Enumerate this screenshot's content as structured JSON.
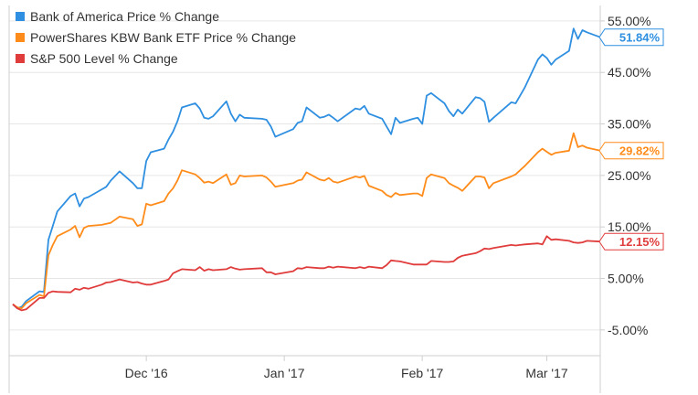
{
  "chart_data": {
    "type": "line",
    "title": "",
    "xlabel": "",
    "ylabel": "",
    "ylim": [
      -10,
      58
    ],
    "y_ticks": [
      -5,
      5,
      15,
      25,
      35,
      45,
      55
    ],
    "y_tick_labels": [
      "-5.00%",
      "5.00%",
      "15.00%",
      "25.00%",
      "35.00%",
      "45.00%",
      "55.00%"
    ],
    "x_ticks": [
      {
        "date": "2016-12-01",
        "label": "Dec '16"
      },
      {
        "date": "2017-01-01",
        "label": "Jan '17"
      },
      {
        "date": "2017-02-01",
        "label": "Feb '17"
      },
      {
        "date": "2017-03-01",
        "label": "Mar '17"
      }
    ],
    "x_range": [
      "2016-11-01",
      "2017-03-07"
    ],
    "grid": "horizontal",
    "legend_position": "top-left",
    "series": [
      {
        "name": "Bank of America Price % Change",
        "color": "#2f8fe0",
        "end_label": "51.84%",
        "end_value": 51.84,
        "points": [
          [
            "2016-11-01",
            0.0
          ],
          [
            "2016-11-02",
            -0.8
          ],
          [
            "2016-11-03",
            -0.5
          ],
          [
            "2016-11-04",
            0.6
          ],
          [
            "2016-11-07",
            2.5
          ],
          [
            "2016-11-08",
            2.4
          ],
          [
            "2016-11-09",
            12.5
          ],
          [
            "2016-11-10",
            15.2
          ],
          [
            "2016-11-11",
            18.0
          ],
          [
            "2016-11-14",
            21.0
          ],
          [
            "2016-11-15",
            21.5
          ],
          [
            "2016-11-16",
            19.0
          ],
          [
            "2016-11-17",
            20.5
          ],
          [
            "2016-11-18",
            20.8
          ],
          [
            "2016-11-21",
            22.3
          ],
          [
            "2016-11-22",
            22.8
          ],
          [
            "2016-11-23",
            24.0
          ],
          [
            "2016-11-25",
            25.8
          ],
          [
            "2016-11-28",
            23.5
          ],
          [
            "2016-11-29",
            22.5
          ],
          [
            "2016-11-30",
            22.5
          ],
          [
            "2016-12-01",
            27.8
          ],
          [
            "2016-12-02",
            29.5
          ],
          [
            "2016-12-05",
            30.2
          ],
          [
            "2016-12-06",
            32.0
          ],
          [
            "2016-12-07",
            33.5
          ],
          [
            "2016-12-08",
            35.5
          ],
          [
            "2016-12-09",
            38.2
          ],
          [
            "2016-12-12",
            39.0
          ],
          [
            "2016-12-13",
            38.0
          ],
          [
            "2016-12-14",
            36.2
          ],
          [
            "2016-12-15",
            36.0
          ],
          [
            "2016-12-16",
            36.5
          ],
          [
            "2016-12-19",
            39.4
          ],
          [
            "2016-12-20",
            37.0
          ],
          [
            "2016-12-21",
            35.5
          ],
          [
            "2016-12-22",
            36.8
          ],
          [
            "2016-12-23",
            36.2
          ],
          [
            "2016-12-27",
            36.0
          ],
          [
            "2016-12-28",
            35.8
          ],
          [
            "2016-12-29",
            34.5
          ],
          [
            "2016-12-30",
            32.5
          ],
          [
            "2017-01-03",
            34.0
          ],
          [
            "2017-01-04",
            35.2
          ],
          [
            "2017-01-05",
            35.5
          ],
          [
            "2017-01-06",
            38.2
          ],
          [
            "2017-01-09",
            36.2
          ],
          [
            "2017-01-10",
            36.4
          ],
          [
            "2017-01-11",
            36.8
          ],
          [
            "2017-01-12",
            36.2
          ],
          [
            "2017-01-13",
            35.5
          ],
          [
            "2017-01-17",
            38.0
          ],
          [
            "2017-01-18",
            37.8
          ],
          [
            "2017-01-19",
            38.5
          ],
          [
            "2017-01-20",
            37.0
          ],
          [
            "2017-01-23",
            36.0
          ],
          [
            "2017-01-24",
            34.5
          ],
          [
            "2017-01-25",
            33.0
          ],
          [
            "2017-01-26",
            36.2
          ],
          [
            "2017-01-27",
            35.2
          ],
          [
            "2017-01-30",
            36.0
          ],
          [
            "2017-01-31",
            36.2
          ],
          [
            "2017-02-01",
            35.0
          ],
          [
            "2017-02-02",
            40.5
          ],
          [
            "2017-02-03",
            41.0
          ],
          [
            "2017-02-06",
            39.0
          ],
          [
            "2017-02-07",
            37.5
          ],
          [
            "2017-02-08",
            36.5
          ],
          [
            "2017-02-09",
            37.8
          ],
          [
            "2017-02-10",
            37.0
          ],
          [
            "2017-02-13",
            40.2
          ],
          [
            "2017-02-14",
            40.0
          ],
          [
            "2017-02-15",
            39.3
          ],
          [
            "2017-02-16",
            35.4
          ],
          [
            "2017-02-17",
            36.2
          ],
          [
            "2017-02-21",
            39.2
          ],
          [
            "2017-02-22",
            39.0
          ],
          [
            "2017-02-23",
            40.5
          ],
          [
            "2017-02-24",
            42.0
          ],
          [
            "2017-02-27",
            47.5
          ],
          [
            "2017-02-28",
            48.5
          ],
          [
            "2017-03-01",
            47.8
          ],
          [
            "2017-03-02",
            46.5
          ],
          [
            "2017-03-03",
            47.5
          ],
          [
            "2017-03-06",
            49.2
          ],
          [
            "2017-03-07",
            53.5
          ],
          [
            "2017-03-08",
            51.5
          ],
          [
            "2017-03-09",
            53.2
          ],
          [
            "2017-03-10",
            52.8
          ],
          [
            "2017-03-13",
            51.84
          ]
        ]
      },
      {
        "name": "PowerShares KBW Bank ETF Price % Change",
        "color": "#ff8c1a",
        "end_label": "29.82%",
        "end_value": 29.82,
        "points": [
          [
            "2016-11-01",
            0.0
          ],
          [
            "2016-11-02",
            -0.6
          ],
          [
            "2016-11-03",
            -0.8
          ],
          [
            "2016-11-04",
            0.2
          ],
          [
            "2016-11-07",
            1.8
          ],
          [
            "2016-11-08",
            1.5
          ],
          [
            "2016-11-09",
            9.5
          ],
          [
            "2016-11-10",
            11.5
          ],
          [
            "2016-11-11",
            13.2
          ],
          [
            "2016-11-14",
            14.5
          ],
          [
            "2016-11-15",
            15.2
          ],
          [
            "2016-11-16",
            13.0
          ],
          [
            "2016-11-17",
            14.8
          ],
          [
            "2016-11-18",
            15.2
          ],
          [
            "2016-11-21",
            15.4
          ],
          [
            "2016-11-22",
            15.6
          ],
          [
            "2016-11-23",
            15.8
          ],
          [
            "2016-11-25",
            17.0
          ],
          [
            "2016-11-28",
            16.5
          ],
          [
            "2016-11-29",
            15.2
          ],
          [
            "2016-11-30",
            15.5
          ],
          [
            "2016-12-01",
            19.5
          ],
          [
            "2016-12-02",
            19.2
          ],
          [
            "2016-12-05",
            20.0
          ],
          [
            "2016-12-06",
            21.5
          ],
          [
            "2016-12-07",
            22.5
          ],
          [
            "2016-12-08",
            24.0
          ],
          [
            "2016-12-09",
            26.0
          ],
          [
            "2016-12-12",
            25.2
          ],
          [
            "2016-12-13",
            24.5
          ],
          [
            "2016-12-14",
            23.6
          ],
          [
            "2016-12-15",
            23.8
          ],
          [
            "2016-12-16",
            23.5
          ],
          [
            "2016-12-19",
            25.2
          ],
          [
            "2016-12-20",
            23.2
          ],
          [
            "2016-12-21",
            23.5
          ],
          [
            "2016-12-22",
            25.0
          ],
          [
            "2016-12-23",
            24.8
          ],
          [
            "2016-12-27",
            25.0
          ],
          [
            "2016-12-28",
            24.6
          ],
          [
            "2016-12-29",
            23.8
          ],
          [
            "2016-12-30",
            22.8
          ],
          [
            "2017-01-03",
            23.5
          ],
          [
            "2017-01-04",
            24.0
          ],
          [
            "2017-01-05",
            24.2
          ],
          [
            "2017-01-06",
            25.6
          ],
          [
            "2017-01-09",
            24.2
          ],
          [
            "2017-01-10",
            24.0
          ],
          [
            "2017-01-11",
            24.5
          ],
          [
            "2017-01-12",
            23.8
          ],
          [
            "2017-01-13",
            23.6
          ],
          [
            "2017-01-17",
            24.8
          ],
          [
            "2017-01-18",
            24.6
          ],
          [
            "2017-01-19",
            24.9
          ],
          [
            "2017-01-20",
            23.0
          ],
          [
            "2017-01-23",
            22.0
          ],
          [
            "2017-01-24",
            21.2
          ],
          [
            "2017-01-25",
            20.8
          ],
          [
            "2017-01-26",
            21.6
          ],
          [
            "2017-01-27",
            21.2
          ],
          [
            "2017-01-30",
            21.5
          ],
          [
            "2017-01-31",
            21.5
          ],
          [
            "2017-02-01",
            21.0
          ],
          [
            "2017-02-02",
            24.5
          ],
          [
            "2017-02-03",
            25.2
          ],
          [
            "2017-02-06",
            24.5
          ],
          [
            "2017-02-07",
            23.5
          ],
          [
            "2017-02-08",
            23.0
          ],
          [
            "2017-02-09",
            22.6
          ],
          [
            "2017-02-10",
            22.0
          ],
          [
            "2017-02-13",
            24.8
          ],
          [
            "2017-02-14",
            24.8
          ],
          [
            "2017-02-15",
            24.6
          ],
          [
            "2017-02-16",
            22.5
          ],
          [
            "2017-02-17",
            23.5
          ],
          [
            "2017-02-21",
            24.8
          ],
          [
            "2017-02-22",
            25.2
          ],
          [
            "2017-02-23",
            26.0
          ],
          [
            "2017-02-24",
            26.8
          ],
          [
            "2017-02-27",
            29.5
          ],
          [
            "2017-02-28",
            30.2
          ],
          [
            "2017-03-01",
            29.6
          ],
          [
            "2017-03-02",
            29.0
          ],
          [
            "2017-03-03",
            29.4
          ],
          [
            "2017-03-06",
            29.8
          ],
          [
            "2017-03-07",
            33.2
          ],
          [
            "2017-03-08",
            30.5
          ],
          [
            "2017-03-09",
            30.8
          ],
          [
            "2017-03-10",
            30.4
          ],
          [
            "2017-03-13",
            29.82
          ]
        ]
      },
      {
        "name": "S&P 500 Level % Change",
        "color": "#e03c3c",
        "end_label": "12.15%",
        "end_value": 12.15,
        "points": [
          [
            "2016-11-01",
            0.0
          ],
          [
            "2016-11-02",
            -0.8
          ],
          [
            "2016-11-03",
            -1.2
          ],
          [
            "2016-11-04",
            -1.0
          ],
          [
            "2016-11-07",
            1.2
          ],
          [
            "2016-11-08",
            1.2
          ],
          [
            "2016-11-09",
            2.2
          ],
          [
            "2016-11-10",
            2.5
          ],
          [
            "2016-11-11",
            2.4
          ],
          [
            "2016-11-14",
            2.3
          ],
          [
            "2016-11-15",
            3.0
          ],
          [
            "2016-11-16",
            2.8
          ],
          [
            "2016-11-17",
            3.2
          ],
          [
            "2016-11-18",
            3.0
          ],
          [
            "2016-11-21",
            3.8
          ],
          [
            "2016-11-22",
            4.2
          ],
          [
            "2016-11-23",
            4.3
          ],
          [
            "2016-11-25",
            4.8
          ],
          [
            "2016-11-28",
            4.2
          ],
          [
            "2016-11-29",
            4.3
          ],
          [
            "2016-11-30",
            4.0
          ],
          [
            "2016-12-01",
            3.8
          ],
          [
            "2016-12-02",
            3.8
          ],
          [
            "2016-12-05",
            4.5
          ],
          [
            "2016-12-06",
            4.8
          ],
          [
            "2016-12-07",
            6.0
          ],
          [
            "2016-12-08",
            6.4
          ],
          [
            "2016-12-09",
            6.8
          ],
          [
            "2016-12-12",
            6.6
          ],
          [
            "2016-12-13",
            7.2
          ],
          [
            "2016-12-14",
            6.5
          ],
          [
            "2016-12-15",
            6.8
          ],
          [
            "2016-12-16",
            6.6
          ],
          [
            "2016-12-19",
            6.8
          ],
          [
            "2016-12-20",
            7.2
          ],
          [
            "2016-12-21",
            6.9
          ],
          [
            "2016-12-22",
            6.7
          ],
          [
            "2016-12-23",
            6.8
          ],
          [
            "2016-12-27",
            7.0
          ],
          [
            "2016-12-28",
            6.2
          ],
          [
            "2016-12-29",
            6.2
          ],
          [
            "2016-12-30",
            5.8
          ],
          [
            "2017-01-03",
            6.4
          ],
          [
            "2017-01-04",
            7.0
          ],
          [
            "2017-01-05",
            6.9
          ],
          [
            "2017-01-06",
            7.2
          ],
          [
            "2017-01-09",
            7.0
          ],
          [
            "2017-01-10",
            7.0
          ],
          [
            "2017-01-11",
            7.3
          ],
          [
            "2017-01-12",
            7.1
          ],
          [
            "2017-01-13",
            7.3
          ],
          [
            "2017-01-17",
            7.0
          ],
          [
            "2017-01-18",
            7.2
          ],
          [
            "2017-01-19",
            7.0
          ],
          [
            "2017-01-20",
            7.3
          ],
          [
            "2017-01-23",
            7.0
          ],
          [
            "2017-01-24",
            7.6
          ],
          [
            "2017-01-25",
            8.5
          ],
          [
            "2017-01-26",
            8.4
          ],
          [
            "2017-01-27",
            8.3
          ],
          [
            "2017-01-30",
            7.7
          ],
          [
            "2017-01-31",
            7.7
          ],
          [
            "2017-02-01",
            7.7
          ],
          [
            "2017-02-02",
            7.7
          ],
          [
            "2017-02-03",
            8.4
          ],
          [
            "2017-02-06",
            8.2
          ],
          [
            "2017-02-07",
            8.2
          ],
          [
            "2017-02-08",
            8.3
          ],
          [
            "2017-02-09",
            9.0
          ],
          [
            "2017-02-10",
            9.4
          ],
          [
            "2017-02-13",
            9.9
          ],
          [
            "2017-02-14",
            10.3
          ],
          [
            "2017-02-15",
            10.8
          ],
          [
            "2017-02-16",
            10.7
          ],
          [
            "2017-02-17",
            10.9
          ],
          [
            "2017-02-21",
            11.5
          ],
          [
            "2017-02-22",
            11.4
          ],
          [
            "2017-02-23",
            11.5
          ],
          [
            "2017-02-24",
            11.6
          ],
          [
            "2017-02-27",
            11.8
          ],
          [
            "2017-02-28",
            11.6
          ],
          [
            "2017-03-01",
            13.2
          ],
          [
            "2017-03-02",
            12.5
          ],
          [
            "2017-03-03",
            12.6
          ],
          [
            "2017-03-06",
            12.3
          ],
          [
            "2017-03-07",
            12.0
          ],
          [
            "2017-03-08",
            11.9
          ],
          [
            "2017-03-09",
            12.0
          ],
          [
            "2017-03-10",
            12.3
          ],
          [
            "2017-03-13",
            12.15
          ]
        ]
      }
    ]
  }
}
